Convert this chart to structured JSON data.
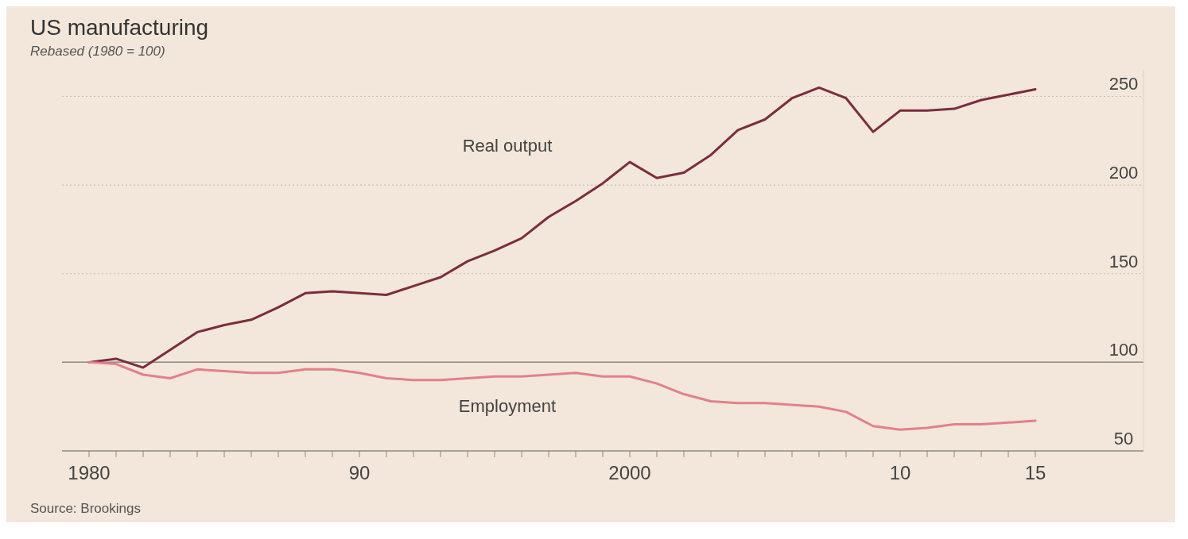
{
  "chart_data": {
    "type": "line",
    "title": "US manufacturing",
    "subtitle": "Rebased (1980 = 100)",
    "x": [
      1980,
      1981,
      1982,
      1983,
      1984,
      1985,
      1986,
      1987,
      1988,
      1989,
      1990,
      1991,
      1992,
      1993,
      1994,
      1995,
      1996,
      1997,
      1998,
      1999,
      2000,
      2001,
      2002,
      2003,
      2004,
      2005,
      2006,
      2007,
      2008,
      2009,
      2010,
      2011,
      2012,
      2013,
      2014,
      2015
    ],
    "series": [
      {
        "name": "Real output",
        "color": "#7b2d3e",
        "values": [
          100,
          102,
          97,
          107,
          117,
          121,
          124,
          131,
          139,
          140,
          139,
          138,
          143,
          148,
          157,
          163,
          170,
          182,
          191,
          201,
          213,
          204,
          207,
          217,
          231,
          237,
          249,
          255,
          249,
          230,
          242,
          242,
          243,
          248,
          251,
          254
        ]
      },
      {
        "name": "Employment",
        "color": "#e3808c",
        "values": [
          100,
          99,
          93,
          91,
          96,
          95,
          94,
          94,
          96,
          96,
          94,
          91,
          90,
          90,
          91,
          92,
          92,
          93,
          94,
          92,
          92,
          88,
          82,
          78,
          77,
          77,
          76,
          75,
          72,
          64,
          62,
          63,
          65,
          65,
          66,
          67
        ]
      }
    ],
    "xlim": [
      1979,
      2019
    ],
    "ref_lines": [
      {
        "axis": "y",
        "value": 100,
        "color": "#8c8a80"
      }
    ],
    "xticks": [
      1980,
      {
        "value": 1981,
        "label": null
      },
      {
        "value": 1982,
        "label": null
      },
      {
        "value": 1983,
        "label": null
      },
      {
        "value": 1984,
        "label": null
      },
      {
        "value": 1985,
        "label": null
      },
      {
        "value": 1986,
        "label": null
      },
      {
        "value": 1987,
        "label": null
      },
      {
        "value": 1988,
        "label": null
      },
      {
        "value": 1989,
        "label": null
      },
      {
        "value": 1990,
        "label": "90"
      },
      {
        "value": 1991,
        "label": null
      },
      {
        "value": 1992,
        "label": null
      },
      {
        "value": 1993,
        "label": null
      },
      {
        "value": 1994,
        "label": null
      },
      {
        "value": 1995,
        "label": null
      },
      {
        "value": 1996,
        "label": null
      },
      {
        "value": 1997,
        "label": null
      },
      {
        "value": 1998,
        "label": null
      },
      {
        "value": 1999,
        "label": null
      },
      2000,
      {
        "value": 2001,
        "label": null
      },
      {
        "value": 2002,
        "label": null
      },
      {
        "value": 2003,
        "label": null
      },
      {
        "value": 2004,
        "label": null
      },
      {
        "value": 2005,
        "label": null
      },
      {
        "value": 2006,
        "label": null
      },
      {
        "value": 2007,
        "label": null
      },
      {
        "value": 2008,
        "label": null
      },
      {
        "value": 2009,
        "label": null
      },
      {
        "value": 2010,
        "label": "10"
      },
      {
        "value": 2011,
        "label": null
      },
      {
        "value": 2012,
        "label": null
      },
      {
        "value": 2013,
        "label": null
      },
      {
        "value": 2014,
        "label": null
      },
      {
        "value": 2015,
        "label": "15"
      }
    ],
    "ylim": [
      50,
      265
    ],
    "yticks": [
      50,
      100,
      150,
      200,
      250
    ],
    "grid": "y",
    "legend": false,
    "line_style": "solid",
    "marker": "none",
    "annotations": [
      "Source: Brookings"
    ]
  }
}
